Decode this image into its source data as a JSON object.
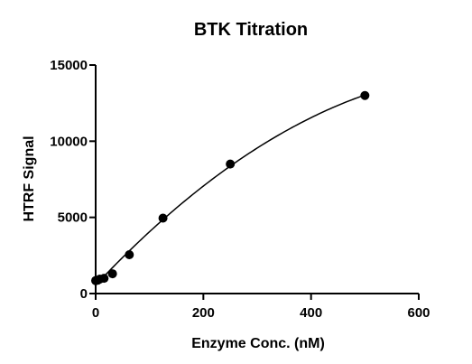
{
  "chart_data": {
    "type": "scatter",
    "title": "BTK Titration",
    "xlabel": "Enzyme Conc. (nM)",
    "ylabel": "HTRF Signal",
    "xlim": [
      0,
      600
    ],
    "ylim": [
      0,
      15000
    ],
    "xticks": [
      0,
      200,
      400,
      600
    ],
    "yticks": [
      0,
      5000,
      10000,
      15000
    ],
    "x_tick_labels": [
      "0",
      "200",
      "400",
      "600"
    ],
    "y_tick_labels": [
      "0",
      "5000",
      "10000",
      "15000"
    ],
    "grid": false,
    "legend": "none",
    "series": [
      {
        "x": [
          0,
          3.9,
          7.8,
          15.6,
          31.25,
          62.5,
          125,
          250,
          500
        ],
        "y": [
          850,
          880,
          950,
          1000,
          1300,
          2550,
          4950,
          8500,
          13000
        ],
        "fit": {
          "type": "curve",
          "color": "#000000"
        },
        "color": "#000000"
      }
    ]
  }
}
